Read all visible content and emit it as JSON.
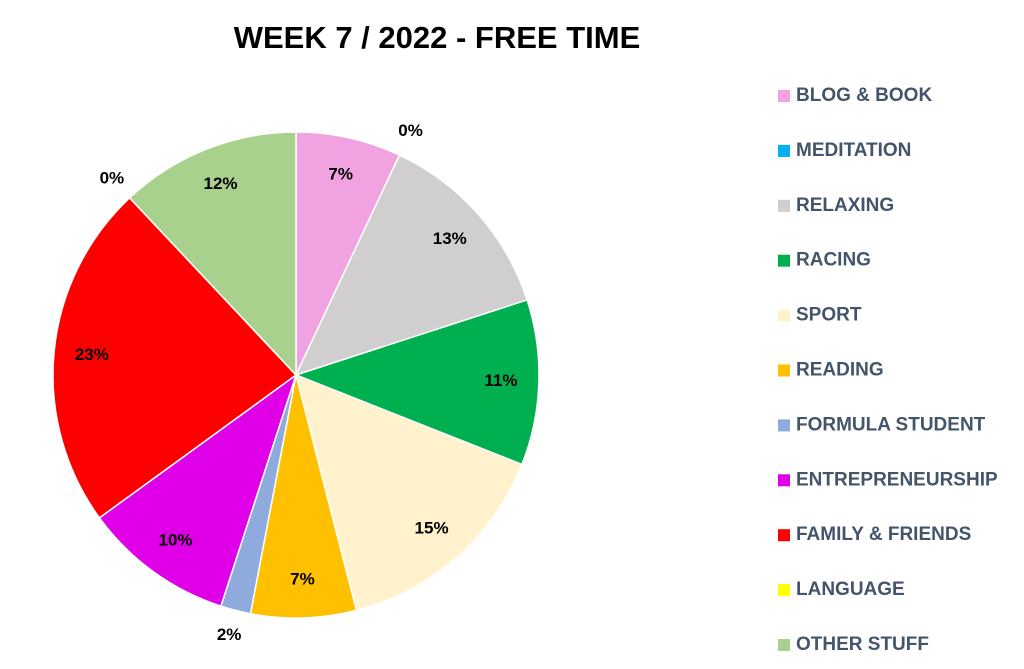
{
  "chart_data": {
    "type": "pie",
    "title": "WEEK 7 / 2022 - FREE TIME",
    "categories": [
      "BLOG & BOOK",
      "MEDITATION",
      "RELAXING",
      "RACING",
      "SPORT",
      "READING",
      "FORMULA STUDENT",
      "ENTREPRENEURSHIP",
      "FAMILY & FRIENDS",
      "LANGUAGE",
      "OTHER STUFF"
    ],
    "values": [
      7,
      0,
      13,
      11,
      15,
      7,
      2,
      10,
      23,
      0,
      12
    ],
    "value_labels": [
      "7%",
      "0%",
      "13%",
      "11%",
      "15%",
      "7%",
      "2%",
      "10%",
      "23%",
      "0%",
      "12%"
    ],
    "colors": [
      "#f1a3e1",
      "#00b0f0",
      "#d0cece",
      "#00b050",
      "#fff2cc",
      "#ffc000",
      "#8faadc",
      "#e000e8",
      "#ff0000",
      "#ffff00",
      "#a9d18e"
    ],
    "legend": "right"
  }
}
